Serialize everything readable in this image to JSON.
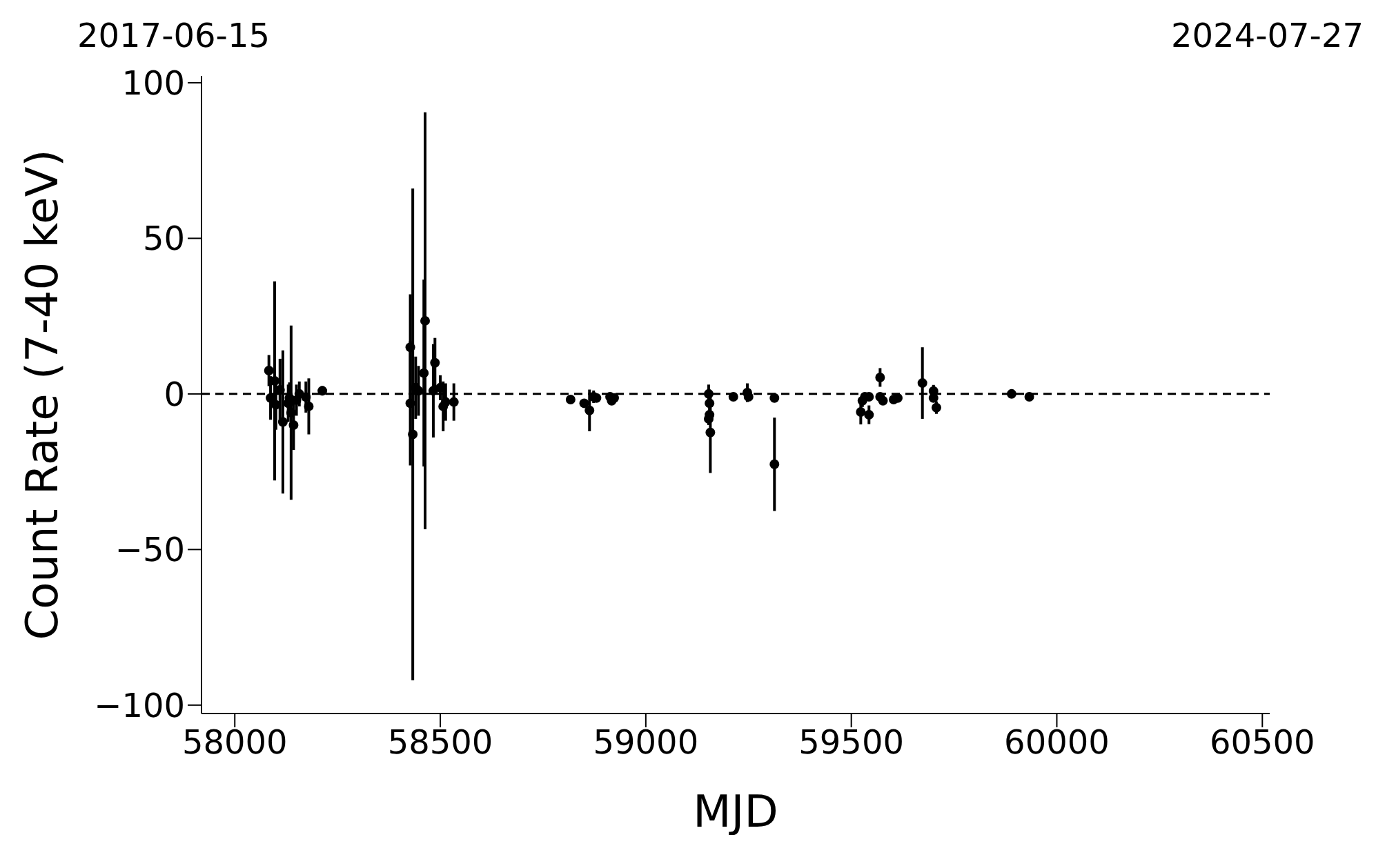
{
  "chart_data": {
    "type": "scatter",
    "xlabel": "MJD",
    "ylabel": "Count Rate (7-40 keV)",
    "annotations": [
      "2017-06-15",
      "2024-07-27"
    ],
    "x": [
      58083,
      58087,
      58097,
      58100,
      58110,
      58117,
      58130,
      58133,
      58137,
      58143,
      58150,
      58157,
      58173,
      58180,
      58213,
      58427,
      58427,
      58433,
      58440,
      58447,
      58460,
      58463,
      58483,
      58487,
      58500,
      58507,
      58513,
      58533,
      58817,
      58850,
      58863,
      58880,
      58873,
      58913,
      58917,
      58923,
      59153,
      59155,
      59155,
      59153,
      59157,
      59213,
      59247,
      59250,
      59313,
      59313,
      59523,
      59527,
      59533,
      59543,
      59543,
      59570,
      59570,
      59577,
      59603,
      59613,
      59673,
      59700,
      59700,
      59707,
      59890,
      59933
    ],
    "values": [
      7.5,
      -1.3,
      4.2,
      -3.5,
      1.3,
      -9,
      -3,
      -1.3,
      -6,
      -10,
      -2,
      0,
      -1,
      -4,
      1,
      15,
      -3,
      -13,
      2,
      1,
      6.7,
      23.5,
      1,
      10,
      2,
      -4,
      -2.6,
      -2.6,
      -1.8,
      -3,
      -5.3,
      -1.3,
      -0.9,
      -0.9,
      -2.2,
      -1.3,
      0,
      -3,
      -6.7,
      -8,
      -12.4,
      -0.9,
      0.4,
      -0.9,
      -1.3,
      -22.6,
      -5.8,
      -2.2,
      -0.9,
      -6.7,
      -0.9,
      5.3,
      -0.9,
      -2.2,
      -1.8,
      -1.3,
      3.5,
      0.9,
      -1.3,
      -4.4,
      0,
      -0.9
    ],
    "errors": [
      5,
      7,
      32,
      8,
      10,
      23,
      6,
      5,
      28,
      8,
      5,
      4,
      5,
      9,
      1.5,
      17,
      20,
      79,
      10,
      8,
      30,
      67,
      15,
      8,
      4,
      8,
      6,
      6,
      1,
      1,
      6.7,
      1,
      2,
      1,
      1,
      1,
      3,
      2,
      2,
      2,
      13,
      1,
      3,
      1,
      1,
      15,
      4,
      2,
      1,
      3,
      1,
      3,
      1,
      1,
      1,
      1,
      11.5,
      2,
      1,
      2,
      1,
      1
    ],
    "color": "#000000",
    "marker": "circle",
    "xlim": [
      57919,
      60518
    ],
    "ylim": [
      -102.7,
      102.2
    ],
    "xticks": [
      58000,
      58500,
      59000,
      59500,
      60000,
      60500
    ],
    "yticks": [
      -100,
      -50,
      0,
      50,
      100
    ],
    "ref_lines": [
      {
        "axis": "y",
        "value": 0,
        "color": "#000000",
        "line_style": "dashed"
      }
    ],
    "grid": false
  }
}
